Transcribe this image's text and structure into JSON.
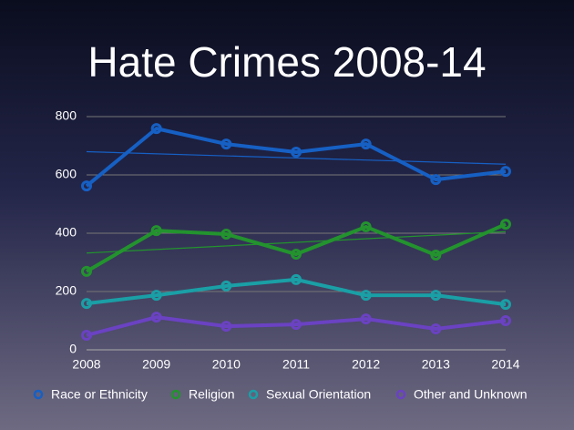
{
  "chart_data": {
    "type": "line",
    "title": "Hate Crimes 2008-14",
    "categories": [
      "2008",
      "2009",
      "2010",
      "2011",
      "2012",
      "2013",
      "2014"
    ],
    "series": [
      {
        "name": "Race or Ethnicity",
        "color": "#1660c4",
        "values": [
          562,
          759,
          706,
          678,
          706,
          584,
          612
        ],
        "trendline": true
      },
      {
        "name": "Religion",
        "color": "#23932e",
        "values": [
          269,
          409,
          397,
          328,
          422,
          325,
          431
        ],
        "trendline": true
      },
      {
        "name": "Sexual Orientation",
        "color": "#1a9fa6",
        "values": [
          159,
          187,
          219,
          241,
          187,
          187,
          156
        ],
        "trendline": false
      },
      {
        "name": "Other and Unknown",
        "color": "#6a42c2",
        "values": [
          50,
          112,
          81,
          87,
          106,
          72,
          100
        ],
        "trendline": false
      }
    ],
    "ylim": [
      0,
      800
    ],
    "yticks": [
      0,
      200,
      400,
      600,
      800
    ],
    "grid": true,
    "legend": "bottom"
  }
}
